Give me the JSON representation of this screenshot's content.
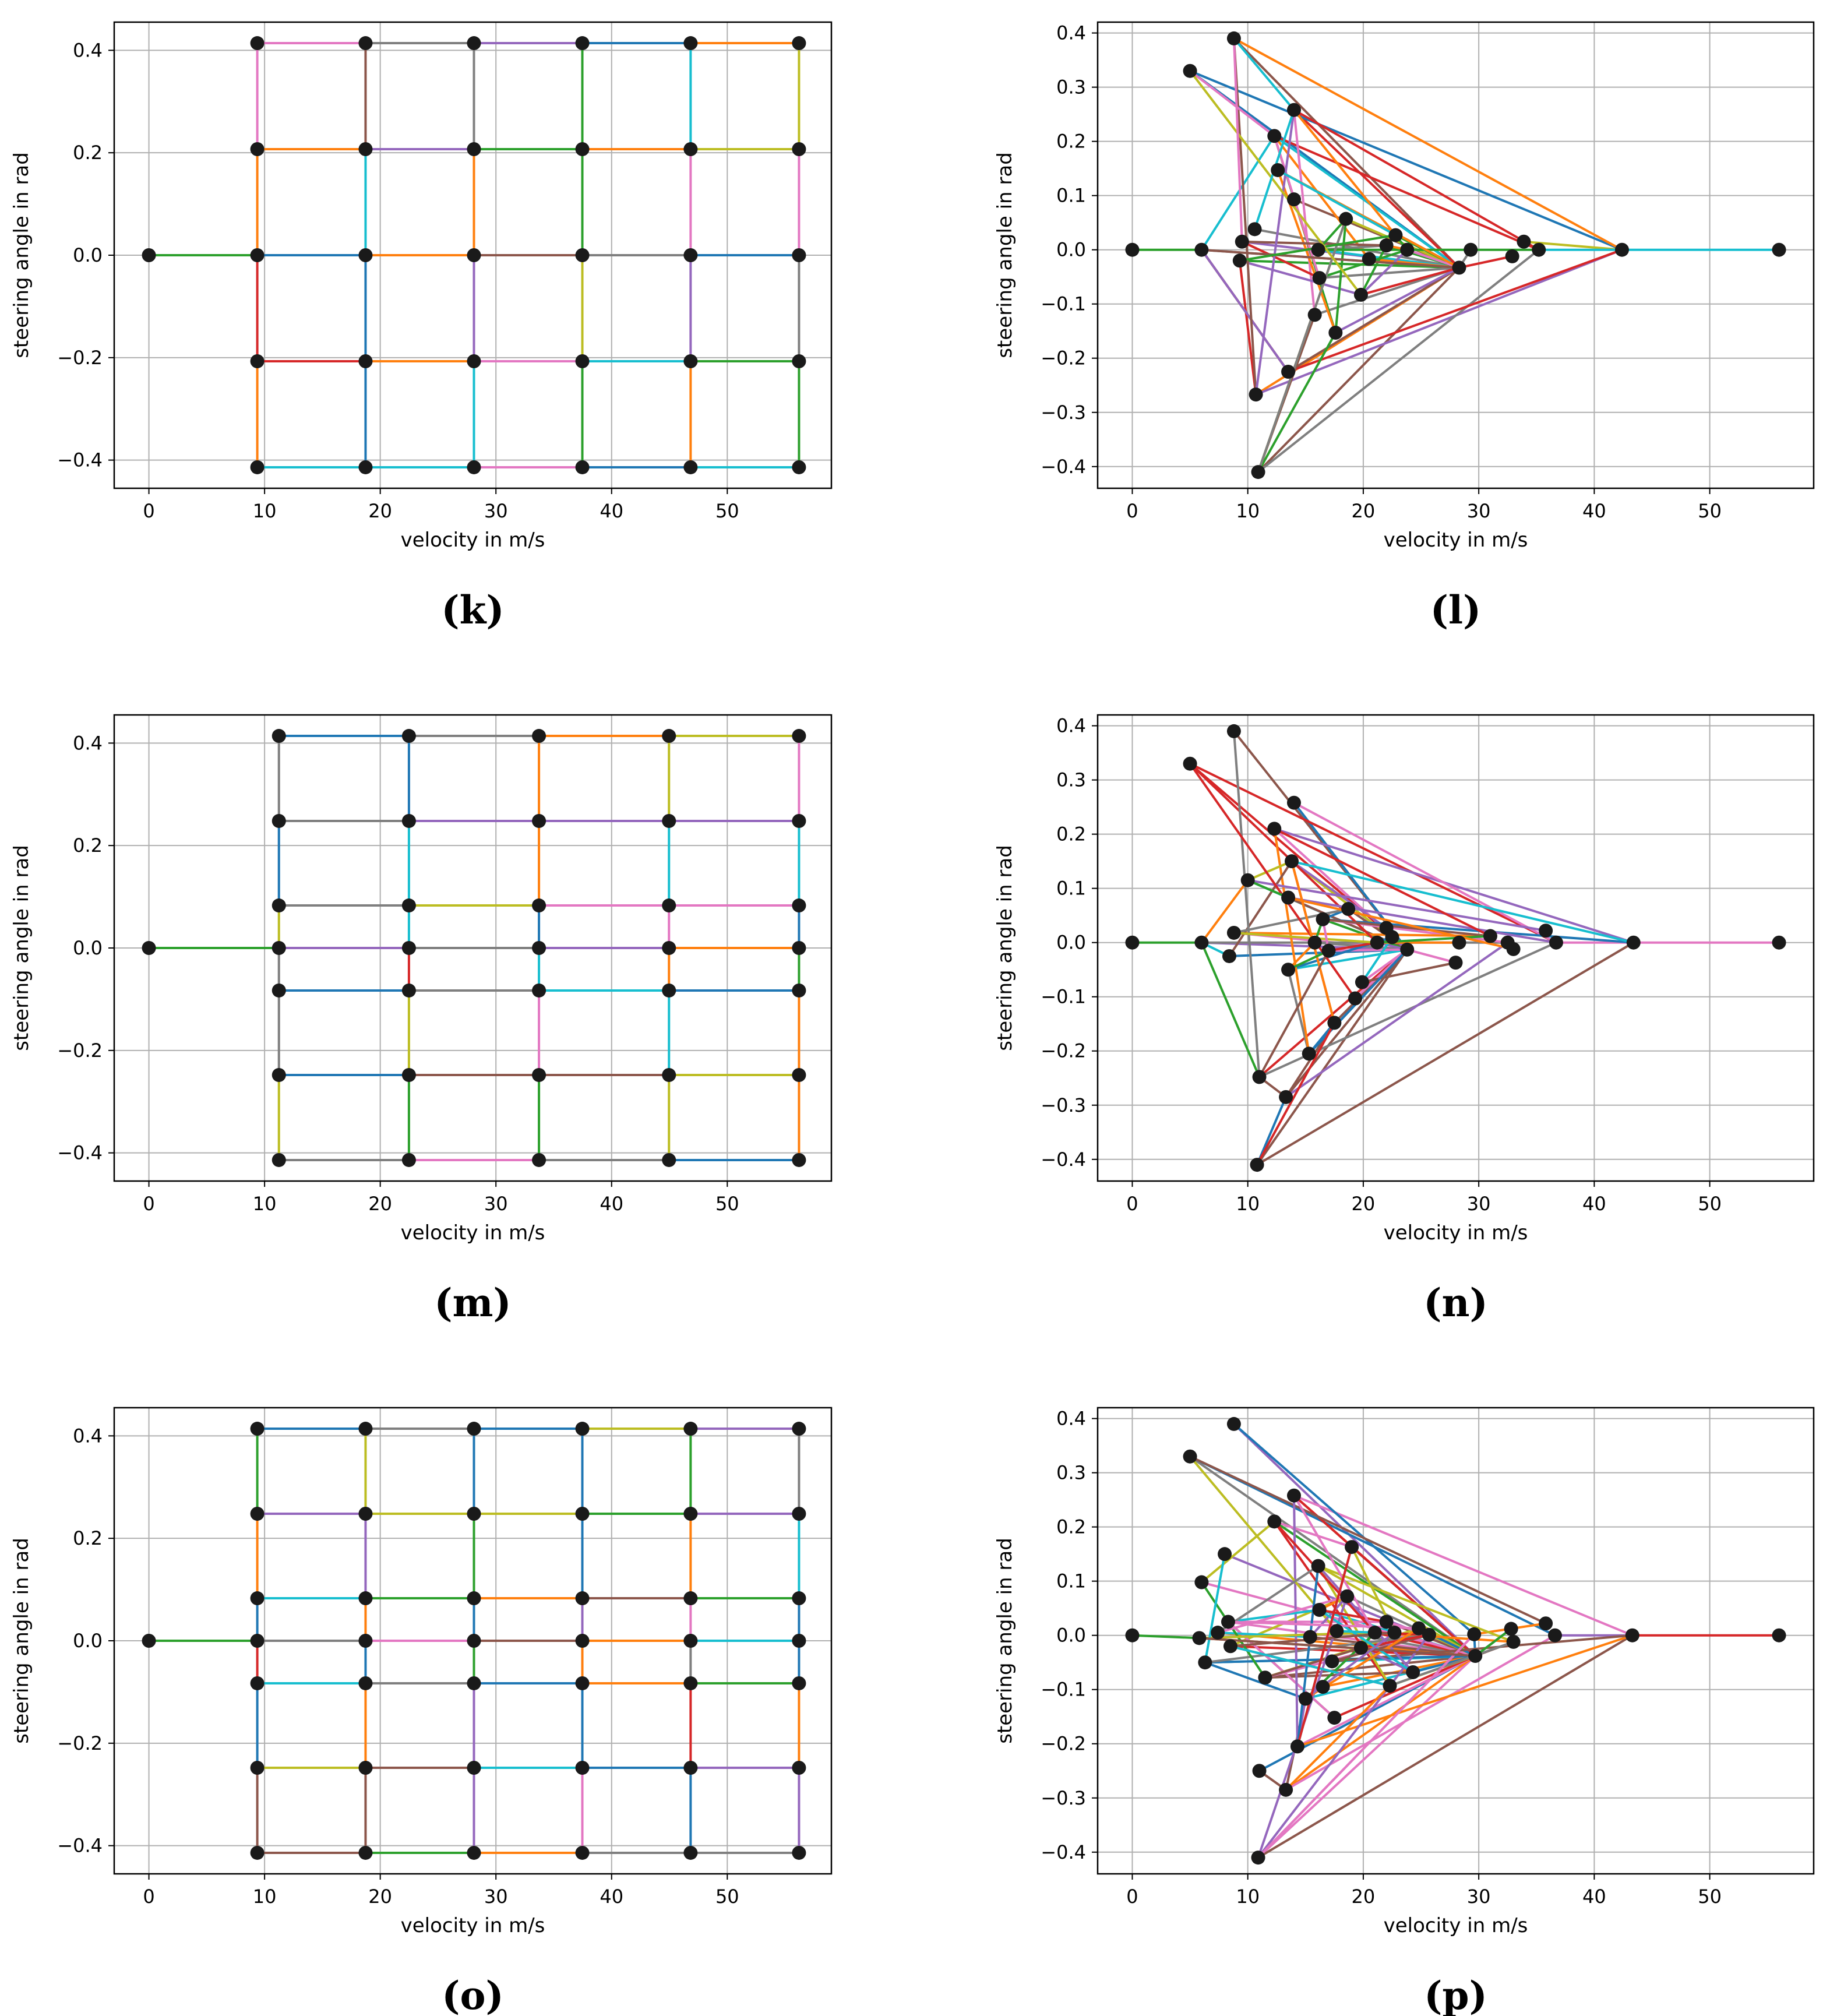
{
  "colors": {
    "tab10": [
      "#1f77b4",
      "#ff7f0e",
      "#2ca02c",
      "#d62728",
      "#9467bd",
      "#8c564b",
      "#e377c2",
      "#7f7f7f",
      "#bcbd22",
      "#17becf"
    ],
    "marker": "#1a1a1a",
    "grid": "#b0b0b0"
  },
  "chart_data": [
    {
      "id": "k",
      "panel_label": "(k)",
      "type": "line",
      "title": "",
      "xlabel": "velocity in m/s",
      "ylabel": "steering angle in rad",
      "xlim": [
        -3,
        59
      ],
      "ylim": [
        -0.455,
        0.455
      ],
      "xticks": [
        0,
        10,
        20,
        30,
        40,
        50
      ],
      "xtick_labels": [
        "0",
        "10",
        "20",
        "30",
        "40",
        "50"
      ],
      "yticks": [
        -0.4,
        -0.2,
        0.0,
        0.2,
        0.4
      ],
      "ytick_labels": [
        "−0.4",
        "−0.2",
        "0.0",
        "0.2",
        "0.4"
      ],
      "grid": true,
      "grid_x": [
        0,
        9.37,
        18.73,
        28.1,
        37.47,
        46.83,
        56.2
      ],
      "grid_y": [
        -0.414,
        -0.207,
        0,
        0.207,
        0.414
      ],
      "start": [
        0,
        0
      ],
      "edges_seed": 11
    },
    {
      "id": "l",
      "panel_label": "(l)",
      "type": "line",
      "title": "",
      "xlabel": "velocity in m/s",
      "ylabel": "steering angle in rad",
      "xlim": [
        -3,
        59
      ],
      "ylim": [
        -0.44,
        0.42
      ],
      "xticks": [
        0,
        10,
        20,
        30,
        40,
        50
      ],
      "xtick_labels": [
        "0",
        "10",
        "20",
        "30",
        "40",
        "50"
      ],
      "yticks": [
        -0.4,
        -0.3,
        -0.2,
        -0.1,
        0.0,
        0.1,
        0.2,
        0.3,
        0.4
      ],
      "ytick_labels": [
        "−0.4",
        "−0.3",
        "−0.2",
        "−0.1",
        "0.0",
        "0.1",
        "0.2",
        "0.3",
        "0.4"
      ],
      "grid": true,
      "points": [
        [
          0,
          0
        ],
        [
          6,
          0
        ],
        [
          5,
          0.33
        ],
        [
          8.8,
          0.39
        ],
        [
          9.5,
          0.015
        ],
        [
          9.3,
          -0.02
        ],
        [
          10.6,
          0.038
        ],
        [
          10.7,
          -0.267
        ],
        [
          10.9,
          -0.41
        ],
        [
          12.3,
          0.21
        ],
        [
          12.6,
          0.147
        ],
        [
          13.5,
          -0.225
        ],
        [
          14,
          0.258
        ],
        [
          14,
          0.093
        ],
        [
          16.1,
          0
        ],
        [
          16.2,
          -0.052
        ],
        [
          15.8,
          -0.12
        ],
        [
          17.6,
          -0.153
        ],
        [
          18.5,
          0.057
        ],
        [
          19.8,
          -0.083
        ],
        [
          20.5,
          -0.017
        ],
        [
          22,
          0.008
        ],
        [
          22.8,
          0.027
        ],
        [
          23.8,
          0
        ],
        [
          28.3,
          -0.033
        ],
        [
          29.3,
          0
        ],
        [
          32.9,
          -0.012
        ],
        [
          33.9,
          0.015
        ],
        [
          35.2,
          0
        ],
        [
          42.4,
          0
        ],
        [
          56,
          0
        ]
      ],
      "hub": 24,
      "far": [
        [
          27,
          29
        ],
        [
          28,
          30
        ]
      ],
      "edges_seed": 21,
      "extra_edges": 40
    },
    {
      "id": "m",
      "panel_label": "(m)",
      "type": "line",
      "title": "",
      "xlabel": "velocity in m/s",
      "ylabel": "steering angle in rad",
      "xlim": [
        -3,
        59
      ],
      "ylim": [
        -0.455,
        0.455
      ],
      "xticks": [
        0,
        10,
        20,
        30,
        40,
        50
      ],
      "xtick_labels": [
        "0",
        "10",
        "20",
        "30",
        "40",
        "50"
      ],
      "yticks": [
        -0.4,
        -0.2,
        0.0,
        0.2,
        0.4
      ],
      "ytick_labels": [
        "−0.4",
        "−0.2",
        "0.0",
        "0.2",
        "0.4"
      ],
      "grid": true,
      "grid_x": [
        0,
        11.24,
        22.48,
        33.72,
        44.96,
        56.2
      ],
      "grid_y": [
        -0.414,
        -0.248,
        -0.083,
        0,
        0.083,
        0.248,
        0.414
      ],
      "start": [
        0,
        0
      ],
      "edges_seed": 31
    },
    {
      "id": "n",
      "panel_label": "(n)",
      "type": "line",
      "title": "",
      "xlabel": "velocity in m/s",
      "ylabel": "steering angle in rad",
      "xlim": [
        -3,
        59
      ],
      "ylim": [
        -0.44,
        0.42
      ],
      "xticks": [
        0,
        10,
        20,
        30,
        40,
        50
      ],
      "xtick_labels": [
        "0",
        "10",
        "20",
        "30",
        "40",
        "50"
      ],
      "yticks": [
        -0.4,
        -0.3,
        -0.2,
        -0.1,
        0.0,
        0.1,
        0.2,
        0.3,
        0.4
      ],
      "ytick_labels": [
        "−0.4",
        "−0.3",
        "−0.2",
        "−0.1",
        "0.0",
        "0.1",
        "0.2",
        "0.3",
        "0.4"
      ],
      "grid": true,
      "points": [
        [
          0,
          0
        ],
        [
          6,
          0
        ],
        [
          5,
          0.33
        ],
        [
          8.8,
          0.39
        ],
        [
          8.4,
          -0.025
        ],
        [
          8.8,
          0.018
        ],
        [
          10,
          0.115
        ],
        [
          11,
          -0.248
        ],
        [
          10.8,
          -0.41
        ],
        [
          12.3,
          0.21
        ],
        [
          13.3,
          -0.285
        ],
        [
          13.5,
          0.083
        ],
        [
          13.5,
          -0.05
        ],
        [
          13.8,
          0.15
        ],
        [
          14,
          0.258
        ],
        [
          15.3,
          -0.205
        ],
        [
          15.8,
          0
        ],
        [
          16.5,
          0.043
        ],
        [
          17,
          -0.015
        ],
        [
          17.5,
          -0.148
        ],
        [
          18.7,
          0.062
        ],
        [
          19.3,
          -0.103
        ],
        [
          19.9,
          -0.073
        ],
        [
          21.2,
          0
        ],
        [
          22,
          0.027
        ],
        [
          22.5,
          0.01
        ],
        [
          23.8,
          -0.013
        ],
        [
          28,
          -0.037
        ],
        [
          28.3,
          0
        ],
        [
          31,
          0.012
        ],
        [
          32.5,
          0
        ],
        [
          33,
          -0.012
        ],
        [
          35.8,
          0.022
        ],
        [
          36.7,
          0
        ],
        [
          43.4,
          0
        ],
        [
          56,
          0
        ]
      ],
      "hub": 26,
      "far": [
        [
          33,
          34
        ],
        [
          34,
          35
        ]
      ],
      "edges_seed": 41,
      "extra_edges": 50
    },
    {
      "id": "o",
      "panel_label": "(o)",
      "type": "line",
      "title": "",
      "xlabel": "velocity in m/s",
      "ylabel": "steering angle in rad",
      "xlim": [
        -3,
        59
      ],
      "ylim": [
        -0.455,
        0.455
      ],
      "xticks": [
        0,
        10,
        20,
        30,
        40,
        50
      ],
      "xtick_labels": [
        "0",
        "10",
        "20",
        "30",
        "40",
        "50"
      ],
      "yticks": [
        -0.4,
        -0.2,
        0.0,
        0.2,
        0.4
      ],
      "ytick_labels": [
        "−0.4",
        "−0.2",
        "0.0",
        "0.2",
        "0.4"
      ],
      "grid": true,
      "grid_x": [
        0,
        9.37,
        18.73,
        28.1,
        37.47,
        46.83,
        56.2
      ],
      "grid_y": [
        -0.414,
        -0.248,
        -0.083,
        0,
        0.083,
        0.248,
        0.414
      ],
      "start": [
        0,
        0
      ],
      "edges_seed": 51
    },
    {
      "id": "p",
      "panel_label": "(p)",
      "type": "line",
      "title": "",
      "xlabel": "velocity in m/s",
      "ylabel": "steering angle in rad",
      "xlim": [
        -3,
        59
      ],
      "ylim": [
        -0.44,
        0.42
      ],
      "xticks": [
        0,
        10,
        20,
        30,
        40,
        50
      ],
      "xtick_labels": [
        "0",
        "10",
        "20",
        "30",
        "40",
        "50"
      ],
      "yticks": [
        -0.4,
        -0.3,
        -0.2,
        -0.1,
        0.0,
        0.1,
        0.2,
        0.3,
        0.4
      ],
      "ytick_labels": [
        "−0.4",
        "−0.3",
        "−0.2",
        "−0.1",
        "0.0",
        "0.1",
        "0.2",
        "0.3",
        "0.4"
      ],
      "grid": true,
      "points": [
        [
          0,
          0
        ],
        [
          5.8,
          -0.005
        ],
        [
          5,
          0.33
        ],
        [
          8.8,
          0.39
        ],
        [
          6,
          0.098
        ],
        [
          6.3,
          -0.05
        ],
        [
          7.4,
          0.005
        ],
        [
          8,
          0.15
        ],
        [
          8.3,
          0.025
        ],
        [
          8.5,
          -0.02
        ],
        [
          11,
          -0.25
        ],
        [
          10.9,
          -0.41
        ],
        [
          11.5,
          -0.078
        ],
        [
          12.3,
          0.21
        ],
        [
          13.3,
          -0.285
        ],
        [
          14,
          0.258
        ],
        [
          14.3,
          -0.205
        ],
        [
          15,
          -0.117
        ],
        [
          15.4,
          -0.003
        ],
        [
          16.1,
          0.128
        ],
        [
          16.2,
          0.047
        ],
        [
          16.5,
          -0.095
        ],
        [
          17.3,
          -0.048
        ],
        [
          17.5,
          -0.152
        ],
        [
          17.7,
          0.008
        ],
        [
          18.6,
          0.072
        ],
        [
          19,
          0.163
        ],
        [
          19.8,
          -0.023
        ],
        [
          21,
          0.005
        ],
        [
          22,
          0.025
        ],
        [
          22.3,
          -0.093
        ],
        [
          22.7,
          0.005
        ],
        [
          24.3,
          -0.068
        ],
        [
          24.8,
          0.013
        ],
        [
          25.7,
          0.001
        ],
        [
          29.6,
          0.002
        ],
        [
          29.7,
          -0.038
        ],
        [
          32.8,
          0.012
        ],
        [
          33,
          -0.012
        ],
        [
          35.8,
          0.022
        ],
        [
          36.6,
          0
        ],
        [
          43.3,
          0
        ],
        [
          56,
          0
        ]
      ],
      "hub": 36,
      "far": [
        [
          40,
          41
        ],
        [
          41,
          42
        ]
      ],
      "edges_seed": 61,
      "extra_edges": 70
    }
  ]
}
